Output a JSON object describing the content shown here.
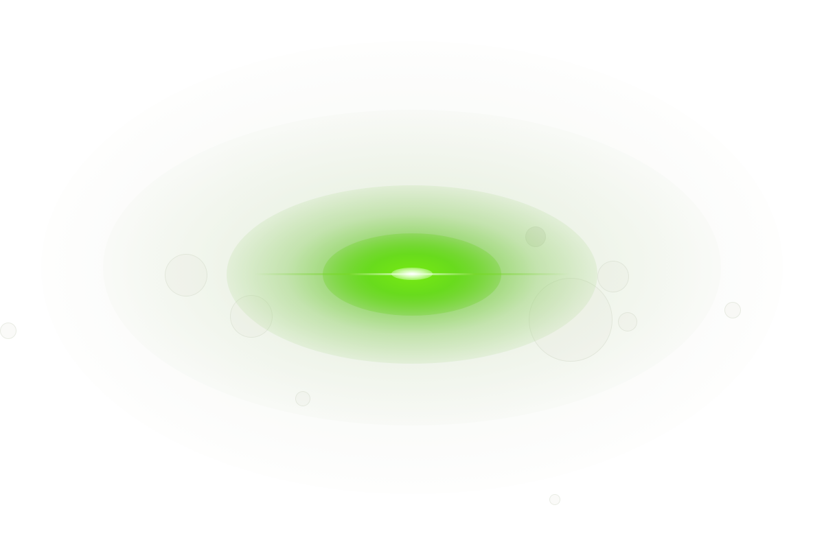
{
  "scene": {
    "subject": "green-lens-flare",
    "colors": {
      "background": "#ffffff",
      "glow": "#60d21e",
      "core": "#78eb14",
      "hot_center": "#ffffff"
    }
  }
}
